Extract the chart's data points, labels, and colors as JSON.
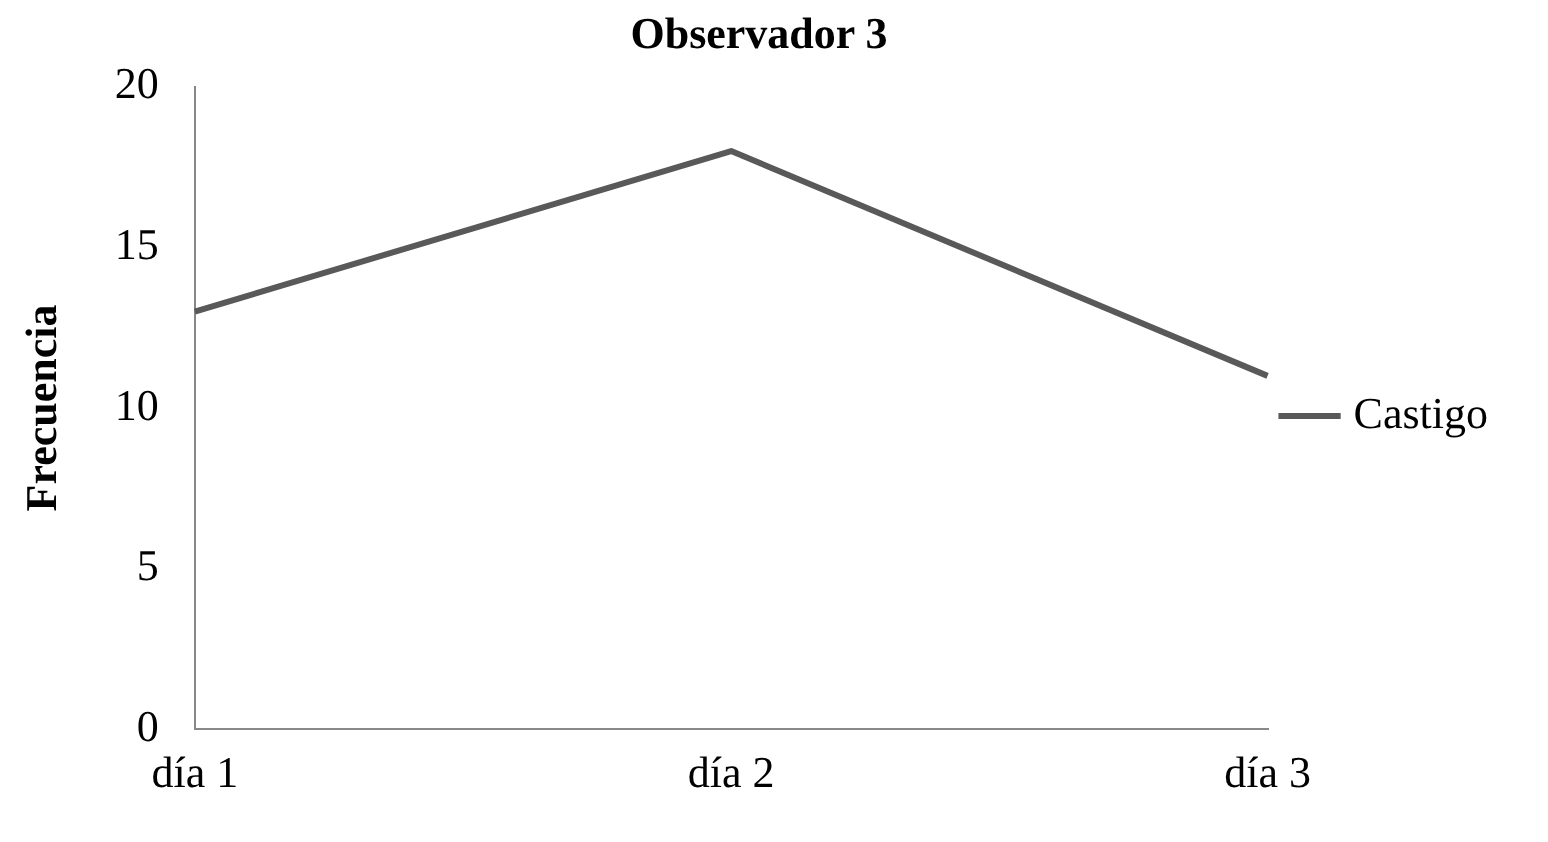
{
  "chart_data": {
    "type": "line",
    "title": "Observador 3",
    "ylabel": "Frecuencia",
    "categories": [
      "día 1",
      "día 2",
      "día 3"
    ],
    "series": [
      {
        "name": "Castigo",
        "color": "#595959",
        "values": [
          13,
          18,
          11
        ]
      }
    ],
    "ylim": [
      0,
      20
    ],
    "yticks": [
      0,
      5,
      10,
      15,
      20
    ],
    "grid": false,
    "legend": "right",
    "marker": "none"
  }
}
